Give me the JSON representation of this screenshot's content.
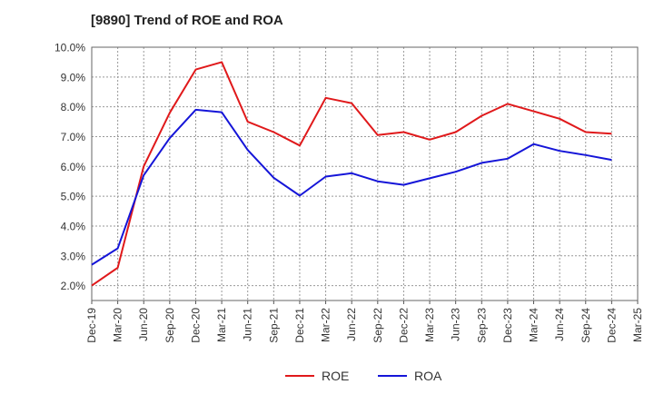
{
  "chart_data": {
    "type": "line",
    "title": "[9890]  Trend of ROE and ROA",
    "xlabel": "",
    "ylabel": "",
    "x": [
      "Dec-19",
      "Mar-20",
      "Jun-20",
      "Sep-20",
      "Dec-20",
      "Mar-21",
      "Jun-21",
      "Sep-21",
      "Dec-21",
      "Mar-22",
      "Jun-22",
      "Sep-22",
      "Dec-22",
      "Mar-23",
      "Jun-23",
      "Sep-23",
      "Dec-23",
      "Mar-24",
      "Jun-24",
      "Sep-24",
      "Dec-24",
      "Mar-25"
    ],
    "ylim": [
      1.5,
      10.0
    ],
    "y_ticks": [
      2.0,
      3.0,
      4.0,
      5.0,
      6.0,
      7.0,
      8.0,
      9.0,
      10.0
    ],
    "y_tick_labels": [
      "2.0%",
      "3.0%",
      "4.0%",
      "5.0%",
      "6.0%",
      "7.0%",
      "8.0%",
      "9.0%",
      "10.0%"
    ],
    "grid": true,
    "legend_position": "bottom-center",
    "series": [
      {
        "name": "ROE",
        "color": "#e0191b",
        "values": [
          2.0,
          2.6,
          6.0,
          7.8,
          9.25,
          9.5,
          7.5,
          7.15,
          6.7,
          8.3,
          8.12,
          7.05,
          7.15,
          6.9,
          7.15,
          7.7,
          8.1,
          7.85,
          7.6,
          7.15,
          7.1,
          null
        ]
      },
      {
        "name": "ROA",
        "color": "#1515d8",
        "values": [
          2.7,
          3.25,
          5.7,
          6.95,
          7.9,
          7.82,
          6.55,
          5.62,
          5.02,
          5.66,
          5.77,
          5.5,
          5.38,
          5.6,
          5.82,
          6.12,
          6.26,
          6.75,
          6.52,
          6.38,
          6.22,
          null
        ]
      }
    ]
  }
}
